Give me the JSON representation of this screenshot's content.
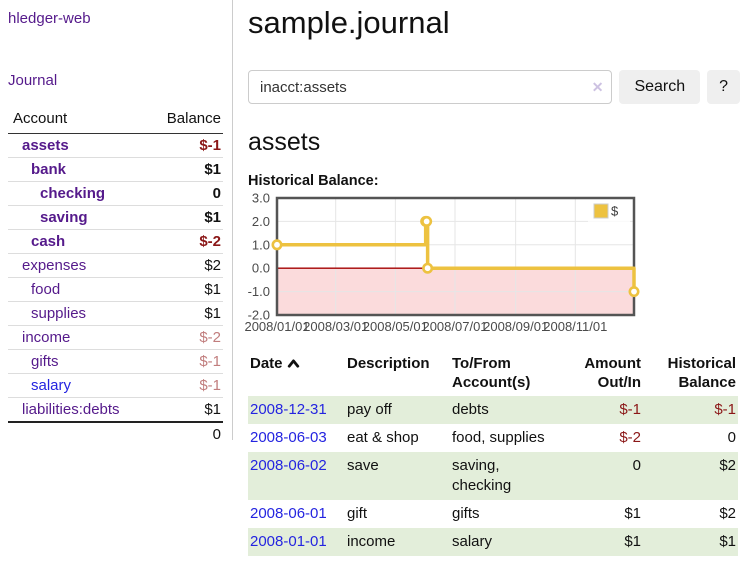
{
  "colors": {
    "text": "#111111",
    "link_purple": "#551a8b",
    "link_blue": "#2424e0",
    "negative_strong": "#8b1717",
    "negative_dim": "#c17d7d",
    "row_green": "#e3eeda",
    "row_divider": "#dddddd",
    "header_line": "#333333",
    "sidebar_divider": "#cccccc",
    "input_border": "#cccccc",
    "button_bg": "#efefef",
    "clear_icon": "#cdc2e2",
    "axis_text": "#4a4a4a",
    "chart_border": "#545454"
  },
  "sidebar": {
    "app_title": "hledger-web",
    "nav": {
      "journal": "Journal"
    },
    "accounts": {
      "header": {
        "account": "Account",
        "balance": "Balance"
      },
      "rows": [
        {
          "name": "assets",
          "depth": 1,
          "balance": "$-1",
          "bold": true,
          "blue": false
        },
        {
          "name": "bank",
          "depth": 2,
          "balance": "$1",
          "bold": true,
          "blue": false
        },
        {
          "name": "checking",
          "depth": 3,
          "balance": "0",
          "bold": true,
          "blue": false
        },
        {
          "name": "saving",
          "depth": 3,
          "balance": "$1",
          "bold": true,
          "blue": false
        },
        {
          "name": "cash",
          "depth": 2,
          "balance": "$-2",
          "bold": true,
          "blue": false
        },
        {
          "name": "expenses",
          "depth": 1,
          "balance": "$2",
          "bold": false,
          "blue": false
        },
        {
          "name": "food",
          "depth": 2,
          "balance": "$1",
          "bold": false,
          "blue": false
        },
        {
          "name": "supplies",
          "depth": 2,
          "balance": "$1",
          "bold": false,
          "blue": false
        },
        {
          "name": "income",
          "depth": 1,
          "balance": "$-2",
          "bold": false,
          "blue": false
        },
        {
          "name": "gifts",
          "depth": 2,
          "balance": "$-1",
          "bold": false,
          "blue": false
        },
        {
          "name": "salary",
          "depth": 2,
          "balance": "$-1",
          "bold": false,
          "blue": true
        },
        {
          "name": "liabilities:debts",
          "depth": 1,
          "balance": "$1",
          "bold": false,
          "blue": false
        }
      ],
      "total": "0"
    }
  },
  "main": {
    "title": "sample.journal",
    "search": {
      "value": "inacct:assets",
      "clear": "✕",
      "submit": "Search",
      "help": "?"
    },
    "account_heading": "assets",
    "chart_title": "Historical Balance:"
  },
  "chart_data": {
    "type": "line",
    "style": "steps",
    "title": "Historical Balance",
    "x_range": [
      "2008-01-01",
      "2008-12-31"
    ],
    "ylim": [
      -2,
      3
    ],
    "y_ticks": [
      {
        "value": 3,
        "label": "3.0"
      },
      {
        "value": 2,
        "label": "2.0"
      },
      {
        "value": 1,
        "label": "1.0"
      },
      {
        "value": 0,
        "label": "0.0"
      },
      {
        "value": -1,
        "label": "-1.0"
      },
      {
        "value": -2,
        "label": "-2.0"
      }
    ],
    "x_ticks": [
      {
        "date": "2008-01-01",
        "label": "2008/01/01"
      },
      {
        "date": "2008-03-01",
        "label": "2008/03/01"
      },
      {
        "date": "2008-05-01",
        "label": "2008/05/01"
      },
      {
        "date": "2008-07-01",
        "label": "2008/07/01"
      },
      {
        "date": "2008-09-01",
        "label": "2008/09/01"
      },
      {
        "date": "2008-11-01",
        "label": "2008/11/01"
      }
    ],
    "series": [
      {
        "name": "$",
        "color": "#edc240",
        "points": [
          [
            "2008-01-01",
            1
          ],
          [
            "2008-06-01",
            2
          ],
          [
            "2008-06-02",
            2
          ],
          [
            "2008-06-03",
            0
          ],
          [
            "2008-12-31",
            -1
          ]
        ]
      }
    ],
    "legend": {
      "label": "$",
      "position": "top-right"
    },
    "negative_fill": "#fbdbdc",
    "zero_line_color": "#a40000",
    "grid_color": "#e6e6e6",
    "grid_on": true
  },
  "register": {
    "header": {
      "date": "Date",
      "sort_icon": "chevron-up",
      "description": "Description",
      "accounts": "To/From Account(s)",
      "amount": "Amount Out/In",
      "balance": "Historical Balance"
    },
    "rows": [
      {
        "date": "2008-12-31",
        "description": "pay off",
        "accounts": "debts",
        "amount": "$-1",
        "balance": "$-1"
      },
      {
        "date": "2008-06-03",
        "description": "eat & shop",
        "accounts": "food, supplies",
        "amount": "$-2",
        "balance": "0"
      },
      {
        "date": "2008-06-02",
        "description": "save",
        "accounts": "saving, checking",
        "amount": "0",
        "balance": "$2"
      },
      {
        "date": "2008-06-01",
        "description": "gift",
        "accounts": "gifts",
        "amount": "$1",
        "balance": "$2"
      },
      {
        "date": "2008-01-01",
        "description": "income",
        "accounts": "salary",
        "amount": "$1",
        "balance": "$1"
      }
    ]
  }
}
